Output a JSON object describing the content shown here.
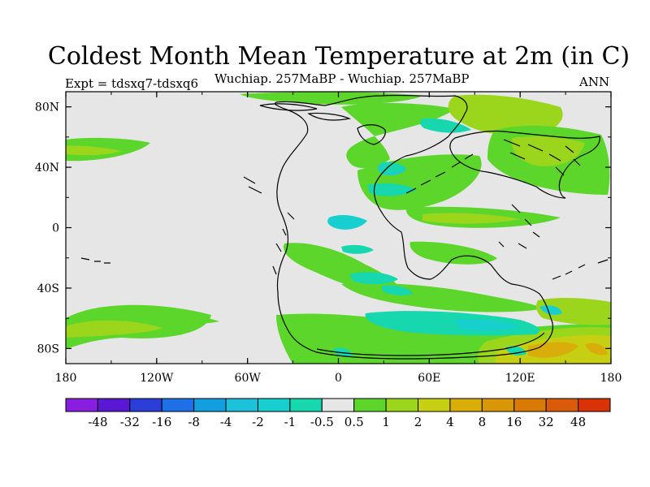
{
  "header": {
    "title": "Coldest Month Mean Temperature at 2m (in C)",
    "experiment": "Expt = tdsxq7-tdsxq6",
    "subtitle": "Wuchiap. 257MaBP - Wuchiap. 257MaBP",
    "season": "ANN"
  },
  "map": {
    "x_ticks": [
      "180",
      "120W",
      "60W",
      "0",
      "60E",
      "120E",
      "180"
    ],
    "y_ticks": [
      "80N",
      "40N",
      "0",
      "40S",
      "80S"
    ],
    "background_color": "#e6e6e6"
  },
  "colorbar": {
    "colors": [
      "#8a1ee0",
      "#5a18d4",
      "#2b3fd8",
      "#1f6fe6",
      "#139fdf",
      "#1cc2da",
      "#17cfcf",
      "#16d7ad",
      "#e6e6e6",
      "#5cd62a",
      "#9bd61c",
      "#c7cf12",
      "#d9ad0a",
      "#d99608",
      "#d97a06",
      "#d95a08",
      "#d93204"
    ],
    "labels": [
      "-48",
      "-32",
      "-16",
      "-8",
      "-4",
      "-2",
      "-1",
      "-0.5",
      "0.5",
      "1",
      "2",
      "4",
      "8",
      "16",
      "32",
      "48"
    ]
  }
}
